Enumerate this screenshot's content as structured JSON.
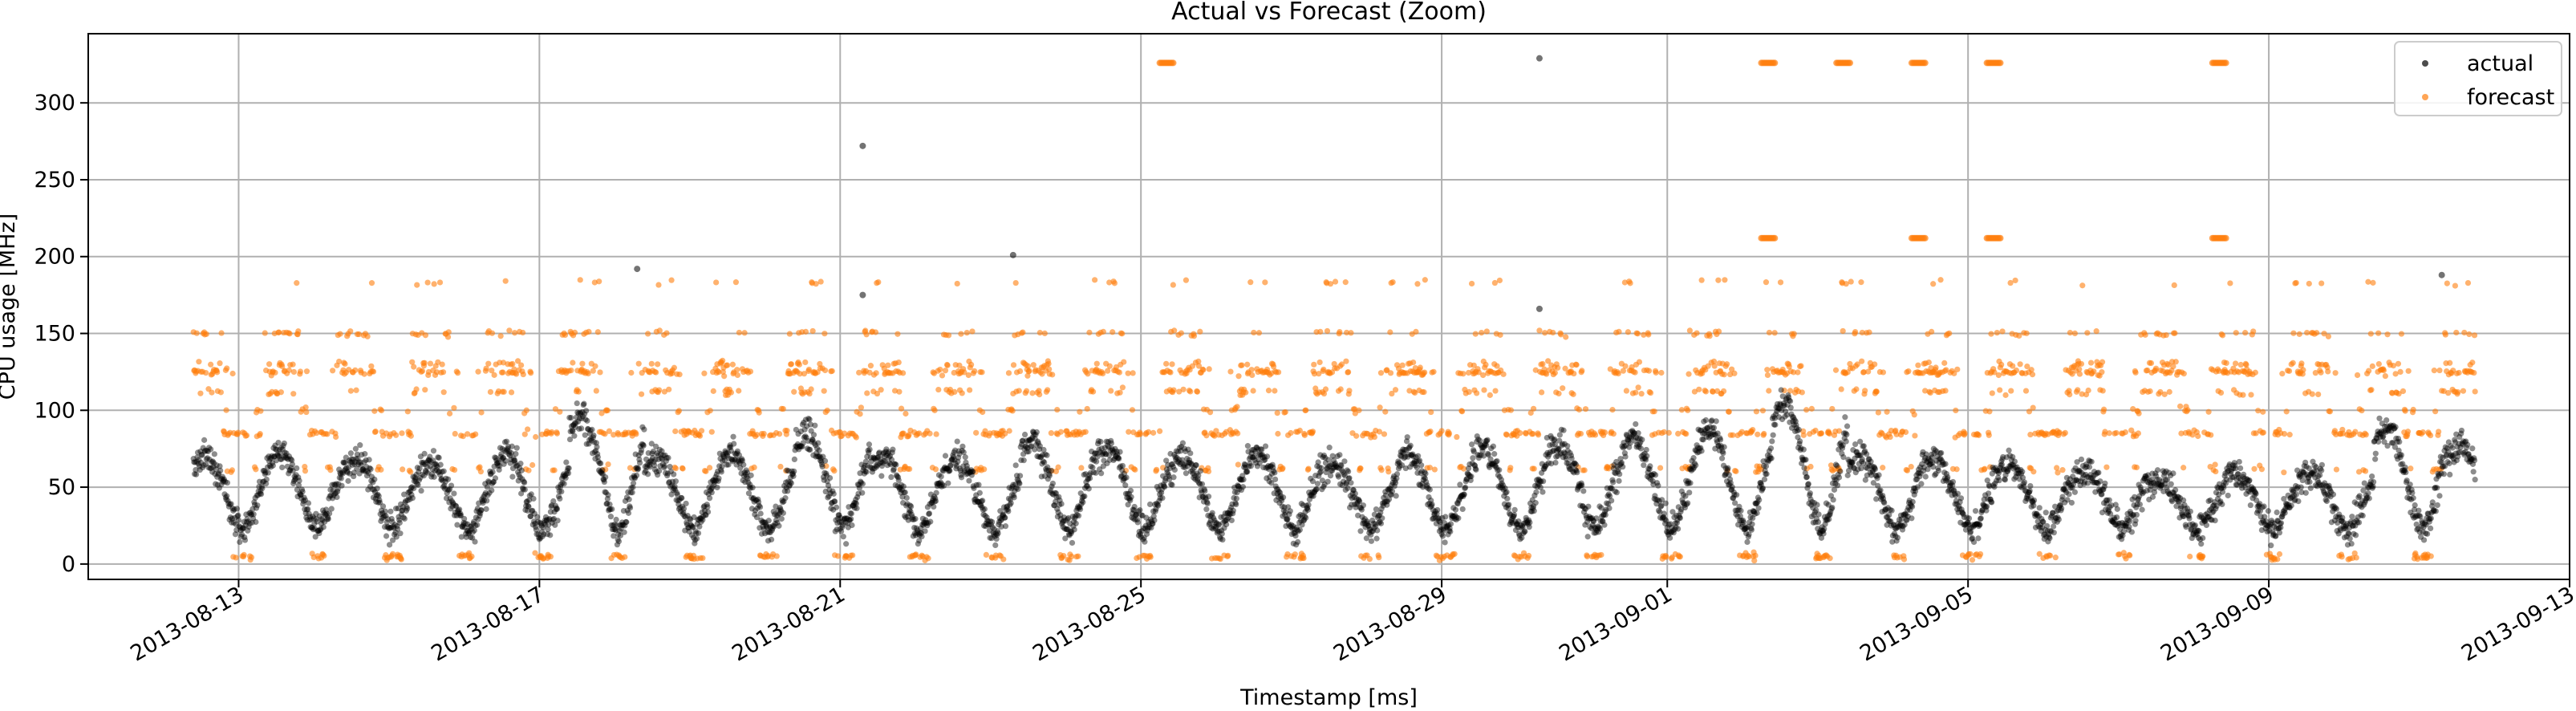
{
  "chart_data": {
    "type": "scatter",
    "title": "Actual vs Forecast (Zoom)",
    "xlabel": "Timestamp [ms]",
    "ylabel": "CPU usage [MHz]",
    "x_tick_labels": [
      "2013-08-13",
      "2013-08-17",
      "2013-08-21",
      "2013-08-25",
      "2013-08-29",
      "2013-09-01",
      "2013-09-05",
      "2013-09-09",
      "2013-09-13"
    ],
    "y_tick_labels": [
      "0",
      "50",
      "100",
      "150",
      "200",
      "250",
      "300"
    ],
    "xlim": [
      "2013-08-11",
      "2013-09-13"
    ],
    "ylim": [
      -10,
      345
    ],
    "grid": true,
    "legend_position": "top-right",
    "date_range": [
      "2013-08-12",
      "2013-09-11"
    ],
    "series": [
      {
        "name": "actual",
        "color": "#000000",
        "marker": "dot",
        "description_profile": {
          "daily_cycle": true,
          "trough_value": 22,
          "peak_values": [
            70,
            72,
            68,
            65,
            72,
            95,
            70,
            72,
            85,
            70,
            68,
            80,
            75,
            70,
            72,
            65,
            70,
            75,
            80,
            82,
            88,
            105,
            70,
            68,
            65,
            62,
            55,
            60,
            60,
            88,
            78,
            70,
            68,
            75,
            72
          ],
          "outliers": [
            {
              "x": "2013-08-21",
              "y": 272
            },
            {
              "x": "2013-08-30",
              "y": 329
            },
            {
              "x": "2013-08-23",
              "y": 201
            },
            {
              "x": "2013-08-18",
              "y": 192
            },
            {
              "x": "2013-08-21",
              "y": 175
            },
            {
              "x": "2013-08-30",
              "y": 166
            },
            {
              "x": "2013-09-11",
              "y": 188
            }
          ]
        }
      },
      {
        "name": "forecast",
        "color": "#ff7f0e",
        "marker": "dot",
        "description_profile": {
          "levels": [
            5,
            62,
            85,
            100,
            112,
            125,
            130,
            150,
            183
          ],
          "spikes": [
            {
              "x": "2013-08-25",
              "y": 326
            },
            {
              "x": "2013-09-02",
              "y": 326
            },
            {
              "x": "2013-09-03",
              "y": 326
            },
            {
              "x": "2013-09-04",
              "y": 326
            },
            {
              "x": "2013-09-05",
              "y": 326
            },
            {
              "x": "2013-09-08",
              "y": 326
            },
            {
              "x": "2013-09-02",
              "y": 212
            },
            {
              "x": "2013-09-04",
              "y": 212
            },
            {
              "x": "2013-09-05",
              "y": 212
            },
            {
              "x": "2013-09-08",
              "y": 212
            }
          ]
        }
      }
    ]
  }
}
